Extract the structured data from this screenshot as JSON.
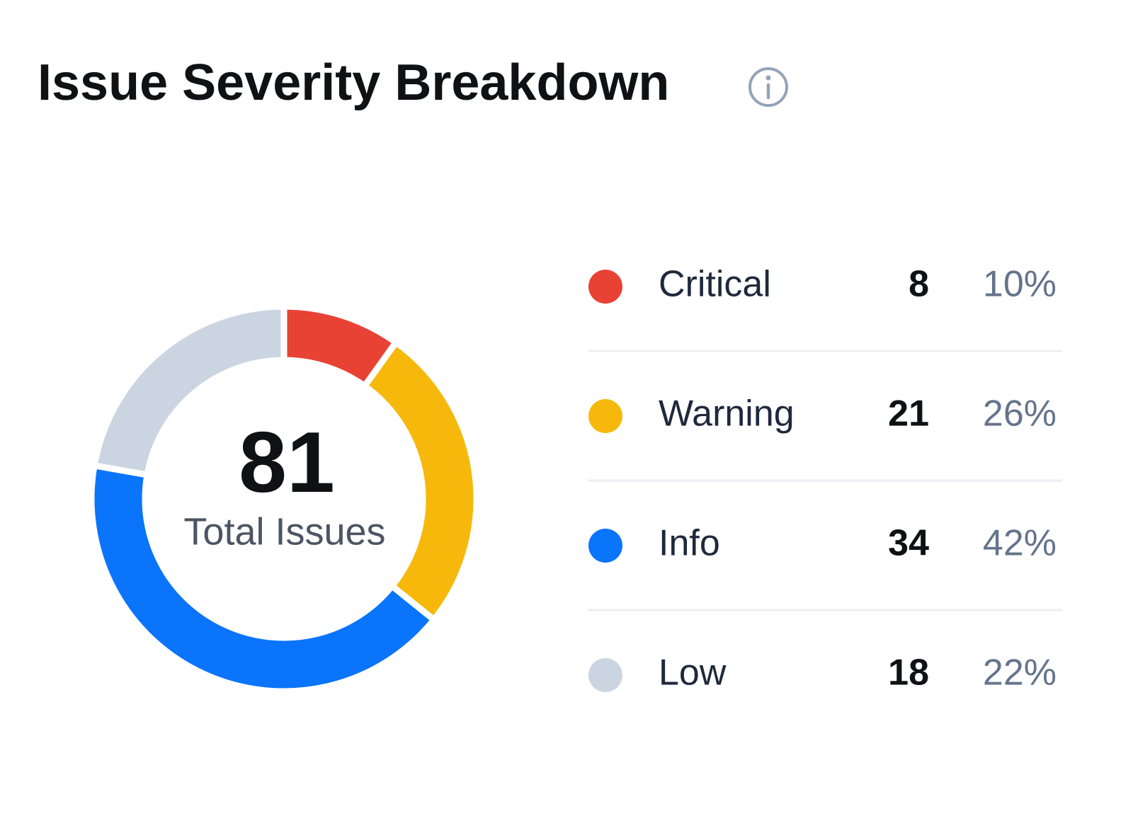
{
  "chart_data": {
    "type": "donut",
    "title": "Issue Severity Breakdown",
    "total": 81,
    "total_label": "Total Issues",
    "categories": [
      "Critical",
      "Warning",
      "Info",
      "Low"
    ],
    "values": [
      8,
      21,
      34,
      18
    ],
    "percent_labels": [
      "10%",
      "26%",
      "42%",
      "22%"
    ],
    "colors": [
      "#e84235",
      "#f6b90b",
      "#0a74fb",
      "#cbd5e1"
    ]
  }
}
